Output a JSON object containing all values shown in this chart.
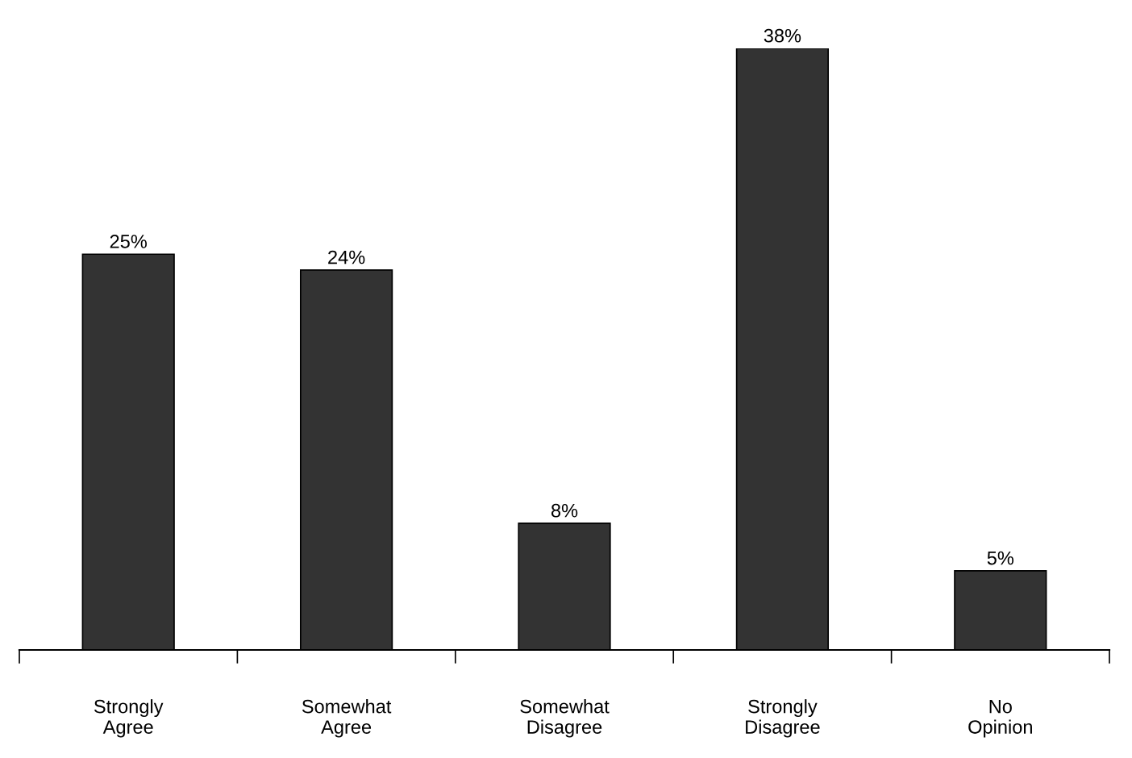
{
  "chart_data": {
    "type": "bar",
    "categories": [
      "Strongly\nAgree",
      "Somewhat\nAgree",
      "Somewhat\nDisagree",
      "Strongly\nDisagree",
      "No\nOpinion"
    ],
    "values": [
      25,
      24,
      8,
      38,
      5
    ],
    "value_labels": [
      "25%",
      "24%",
      "8%",
      "38%",
      "5%"
    ],
    "color": "#333333",
    "grid": false,
    "legend": false
  }
}
